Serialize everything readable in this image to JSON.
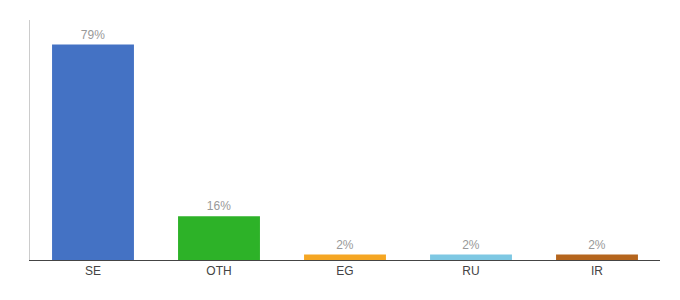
{
  "chart_data": {
    "type": "bar",
    "categories": [
      "SE",
      "OTH",
      "EG",
      "RU",
      "IR"
    ],
    "values": [
      79,
      16,
      2,
      2,
      2
    ],
    "value_labels": [
      "79%",
      "16%",
      "2%",
      "2%",
      "2%"
    ],
    "colors": [
      "#4472c4",
      "#2db228",
      "#f5a623",
      "#7ec8e3",
      "#b5651d"
    ],
    "ylim": [
      0,
      88
    ],
    "grid": false,
    "data_labels": true,
    "tick_labels": "x"
  }
}
